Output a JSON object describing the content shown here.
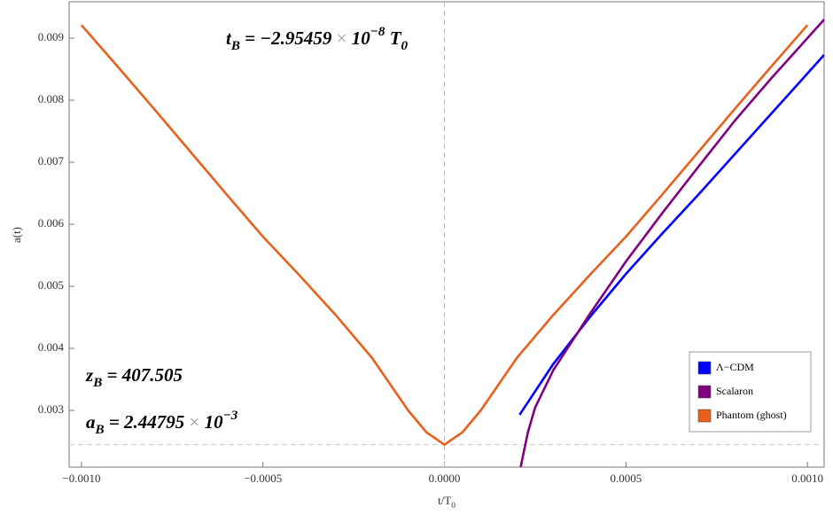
{
  "chart_data": {
    "type": "line",
    "x_label": [
      {
        "t": "t/"
      },
      {
        "t": "T"
      },
      {
        "sub": "0"
      }
    ],
    "y_label": "a(t)",
    "xlim": [
      -0.001034,
      0.001046
    ],
    "ylim": [
      0.002086,
      0.009586
    ],
    "xticks": [
      {
        "value": -0.001,
        "label": "−0.0010"
      },
      {
        "value": -0.0005,
        "label": "−0.0005"
      },
      {
        "value": 0,
        "label": "0.0000"
      },
      {
        "value": 0.0005,
        "label": "0.0005"
      },
      {
        "value": 0.001,
        "label": "0.0010"
      }
    ],
    "yticks": [
      0.003,
      0.004,
      0.005,
      0.006,
      0.007,
      0.008,
      0.009
    ],
    "vline": 0,
    "hline": 0.00244795,
    "legend_position": "lower right",
    "annotations": [
      [
        {
          "t": "t"
        },
        {
          "sub": "B"
        },
        {
          "t": " = −2.95459"
        },
        {
          "op": " × "
        },
        {
          "t": "10"
        },
        {
          "sup": "−8"
        },
        {
          "t": " T"
        },
        {
          "sub": "0"
        }
      ],
      [
        {
          "t": "z"
        },
        {
          "sub": "B"
        },
        {
          "t": " = 407.505"
        }
      ],
      [
        {
          "t": "a"
        },
        {
          "sub": "B"
        },
        {
          "t": " = 2.44795"
        },
        {
          "op": " × "
        },
        {
          "t": "10"
        },
        {
          "sup": "−3"
        }
      ]
    ],
    "series": [
      {
        "name": "Λ−CDM",
        "color": "#0000ff",
        "x": [
          0.000207,
          0.0003,
          0.0004,
          0.0005,
          0.0006,
          0.0007,
          0.0008,
          0.0009,
          0.001,
          0.001046
        ],
        "values": [
          0.00293,
          0.00375,
          0.0045,
          0.0052,
          0.00585,
          0.00648,
          0.00713,
          0.00778,
          0.00843,
          0.00873
        ]
      },
      {
        "name": "Scalaron",
        "color": "#800080",
        "x": [
          0.00021,
          0.00023,
          0.00025,
          0.0003,
          0.0004,
          0.0005,
          0.0006,
          0.0007,
          0.0008,
          0.0009,
          0.001,
          0.001046
        ],
        "values": [
          0.00209,
          0.00265,
          0.00305,
          0.00365,
          0.00455,
          0.0054,
          0.00618,
          0.00693,
          0.00767,
          0.00835,
          0.009,
          0.0093
        ]
      },
      {
        "name": "Phantom (ghost)",
        "color": "#e8601c",
        "x": [
          -0.001,
          -0.0009,
          -0.0008,
          -0.0007,
          -0.0006,
          -0.0005,
          -0.0004,
          -0.0003,
          -0.0002,
          -0.0001,
          -5e-05,
          0,
          5e-05,
          0.0001,
          0.0002,
          0.0003,
          0.0004,
          0.0005,
          0.0006,
          0.0007,
          0.0008,
          0.0009,
          0.001
        ],
        "values": [
          0.00921,
          0.00854,
          0.00786,
          0.00717,
          0.00648,
          0.0058,
          0.00518,
          0.00454,
          0.00385,
          0.003,
          0.00265,
          0.002448,
          0.00265,
          0.003,
          0.00385,
          0.00454,
          0.00518,
          0.0058,
          0.00648,
          0.00717,
          0.00786,
          0.00854,
          0.00921
        ]
      }
    ]
  }
}
